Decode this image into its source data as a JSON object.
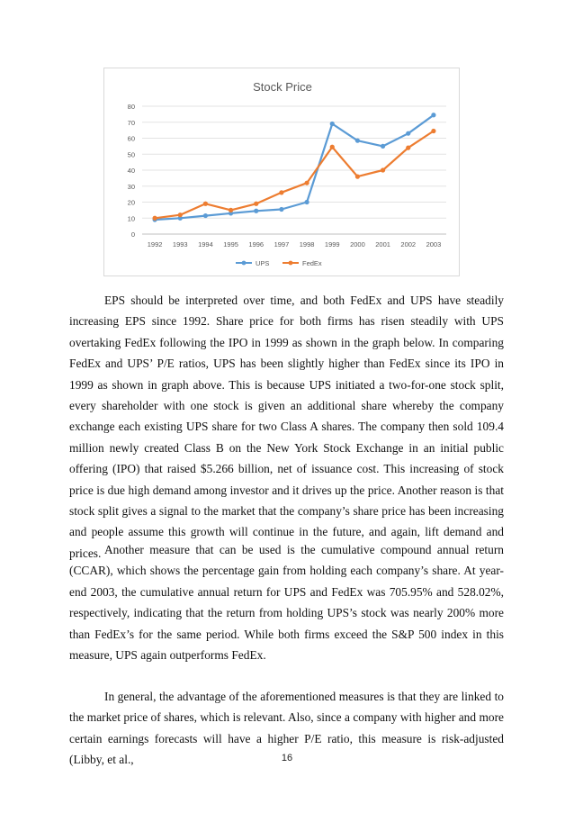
{
  "chart_data": {
    "type": "line",
    "title": "Stock Price",
    "categories": [
      "1992",
      "1993",
      "1994",
      "1995",
      "1996",
      "1997",
      "1998",
      "1999",
      "2000",
      "2001",
      "2002",
      "2003"
    ],
    "series": [
      {
        "name": "UPS",
        "color": "#5b9bd5",
        "values": [
          9,
          10,
          11.5,
          13,
          14.5,
          15.5,
          20,
          69,
          58.5,
          55,
          63,
          74.5
        ]
      },
      {
        "name": "FedEx",
        "color": "#ed7d31",
        "values": [
          10,
          12,
          19,
          15,
          19,
          26,
          32,
          54.5,
          36,
          40,
          54,
          64.5
        ]
      }
    ],
    "ylim": [
      0,
      80
    ],
    "yticks": [
      0,
      10,
      20,
      30,
      40,
      50,
      60,
      70,
      80
    ],
    "grid": true,
    "legend": "bottom",
    "xlabel": "",
    "ylabel": ""
  },
  "paragraphs": [
    "EPS should be interpreted over time, and both FedEx and UPS have steadily increasing EPS since 1992. Share price for both firms has risen steadily with UPS overtaking FedEx following the IPO in 1999 as shown in the graph below. In comparing FedEx and UPS’ P/E ratios, UPS has been slightly higher than FedEx since its IPO in 1999 as shown in graph above. This is because UPS initiated a two-for-one stock split, every shareholder with one stock is given an additional share whereby the company exchange each existing UPS share for two Class A shares. The company then sold 109.4 million newly created Class B on the New York Stock Exchange in an initial public offering (IPO) that raised $5.266 billion, net of issuance cost.  This increasing of stock price is due high demand among investor and it drives up the price. Another reason is that stock split gives a signal to the market that the company’s share price has been increasing and people assume this growth will continue in the future, and again, lift demand and prices.",
    "Another measure that can be used is the cumulative compound annual return (CCAR), which shows the percentage gain from holding each company’s share. At year-end 2003, the cumulative annual return for UPS and FedEx was 705.95% and 528.02%, respectively, indicating that the return from holding UPS’s stock was nearly 200% more than FedEx’s for the same period. While both firms exceed the S&P 500 index in this measure, UPS again outperforms FedEx.",
    "In general, the advantage of the aforementioned measures is that they are linked to the market price of shares, which is relevant. Also, since a company with higher and more certain earnings forecasts will have a higher P/E ratio, this measure is risk-adjusted (Libby, et al.,"
  ],
  "page_number": "16"
}
